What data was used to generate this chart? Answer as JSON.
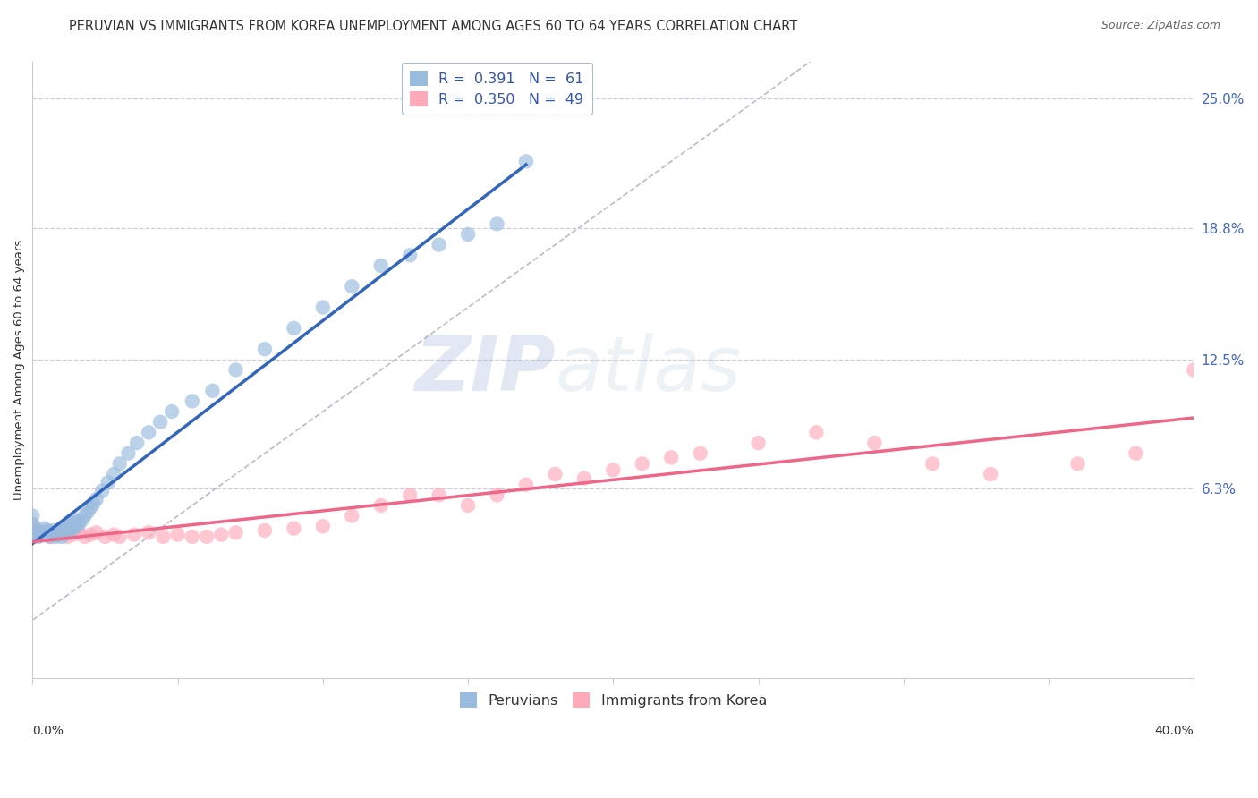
{
  "title": "PERUVIAN VS IMMIGRANTS FROM KOREA UNEMPLOYMENT AMONG AGES 60 TO 64 YEARS CORRELATION CHART",
  "source": "Source: ZipAtlas.com",
  "ylabel": "Unemployment Among Ages 60 to 64 years",
  "ytick_labels": [
    "25.0%",
    "18.8%",
    "12.5%",
    "6.3%"
  ],
  "ytick_values": [
    0.25,
    0.188,
    0.125,
    0.063
  ],
  "xlim": [
    0.0,
    0.4
  ],
  "ylim": [
    -0.028,
    0.268
  ],
  "color_blue": "#99BBDD",
  "color_pink": "#FFAABB",
  "color_blue_line": "#3366BB",
  "color_pink_line": "#EE6688",
  "color_diag": "#BBBBCC",
  "watermark_zip": "ZIP",
  "watermark_atlas": "atlas",
  "peruvian_x": [
    0.0,
    0.0,
    0.0,
    0.0,
    0.0,
    0.002,
    0.002,
    0.003,
    0.004,
    0.004,
    0.005,
    0.005,
    0.006,
    0.006,
    0.007,
    0.007,
    0.008,
    0.008,
    0.009,
    0.009,
    0.01,
    0.01,
    0.011,
    0.011,
    0.012,
    0.012,
    0.013,
    0.013,
    0.014,
    0.014,
    0.015,
    0.015,
    0.016,
    0.017,
    0.018,
    0.019,
    0.02,
    0.021,
    0.022,
    0.024,
    0.026,
    0.028,
    0.03,
    0.033,
    0.036,
    0.04,
    0.044,
    0.048,
    0.055,
    0.062,
    0.07,
    0.08,
    0.09,
    0.1,
    0.11,
    0.12,
    0.13,
    0.14,
    0.15,
    0.16,
    0.17
  ],
  "peruvian_y": [
    0.04,
    0.042,
    0.044,
    0.046,
    0.05,
    0.04,
    0.043,
    0.041,
    0.042,
    0.044,
    0.041,
    0.043,
    0.04,
    0.042,
    0.041,
    0.043,
    0.04,
    0.042,
    0.041,
    0.043,
    0.04,
    0.043,
    0.041,
    0.044,
    0.042,
    0.045,
    0.043,
    0.046,
    0.044,
    0.047,
    0.045,
    0.048,
    0.046,
    0.048,
    0.05,
    0.052,
    0.054,
    0.056,
    0.058,
    0.062,
    0.066,
    0.07,
    0.075,
    0.08,
    0.085,
    0.09,
    0.095,
    0.1,
    0.105,
    0.11,
    0.12,
    0.13,
    0.14,
    0.15,
    0.16,
    0.17,
    0.175,
    0.18,
    0.185,
    0.19,
    0.22
  ],
  "korea_x": [
    0.0,
    0.0,
    0.0,
    0.003,
    0.005,
    0.006,
    0.008,
    0.01,
    0.012,
    0.014,
    0.016,
    0.018,
    0.02,
    0.022,
    0.025,
    0.028,
    0.03,
    0.035,
    0.04,
    0.045,
    0.05,
    0.055,
    0.06,
    0.065,
    0.07,
    0.08,
    0.09,
    0.1,
    0.11,
    0.12,
    0.13,
    0.14,
    0.15,
    0.16,
    0.17,
    0.18,
    0.19,
    0.2,
    0.21,
    0.22,
    0.23,
    0.25,
    0.27,
    0.29,
    0.31,
    0.33,
    0.36,
    0.38,
    0.4
  ],
  "korea_y": [
    0.04,
    0.043,
    0.046,
    0.041,
    0.042,
    0.04,
    0.041,
    0.042,
    0.04,
    0.041,
    0.042,
    0.04,
    0.041,
    0.042,
    0.04,
    0.041,
    0.04,
    0.041,
    0.042,
    0.04,
    0.041,
    0.04,
    0.04,
    0.041,
    0.042,
    0.043,
    0.044,
    0.045,
    0.05,
    0.055,
    0.06,
    0.06,
    0.055,
    0.06,
    0.065,
    0.07,
    0.068,
    0.072,
    0.075,
    0.078,
    0.08,
    0.085,
    0.09,
    0.085,
    0.075,
    0.07,
    0.075,
    0.08,
    0.12
  ],
  "title_fontsize": 10.5,
  "axis_label_fontsize": 9.5,
  "tick_fontsize": 10,
  "legend_fontsize": 11.5
}
